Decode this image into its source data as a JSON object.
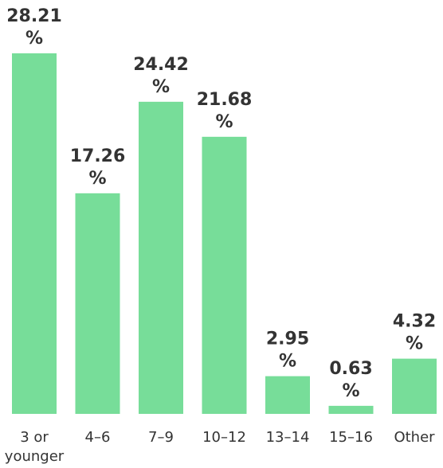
{
  "chart_data": {
    "type": "bar",
    "categories": [
      "3 or younger",
      "4-6",
      "7-9",
      "10-12",
      "13-14",
      "15-16",
      "Other"
    ],
    "category_lines": [
      [
        "3 or",
        "younger"
      ],
      [
        "4–6"
      ],
      [
        "7–9"
      ],
      [
        "10–12"
      ],
      [
        "13–14"
      ],
      [
        "15–16"
      ],
      [
        "Other"
      ]
    ],
    "values": [
      28.21,
      17.26,
      24.42,
      21.68,
      2.95,
      0.63,
      4.32
    ],
    "value_labels": [
      "28.21",
      "17.26",
      "24.42",
      "21.68",
      "2.95",
      "0.63",
      "4.32"
    ],
    "unit_suffix": "%",
    "ylim": [
      0,
      28.21
    ],
    "bar_color": "#77dd99",
    "text_color": "#333333",
    "grid": false,
    "legend": "none"
  }
}
